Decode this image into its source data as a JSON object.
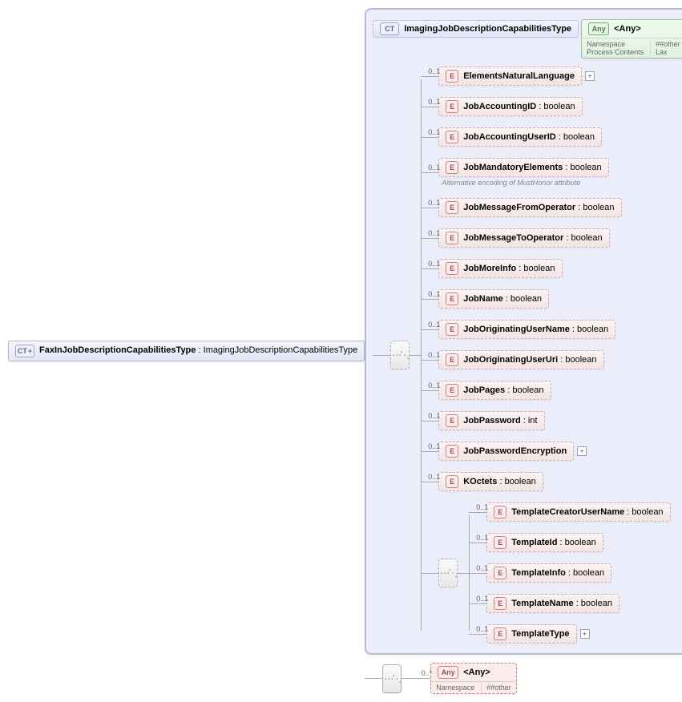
{
  "source": {
    "name": "FaxInJobDescriptionCapabilitiesType",
    "base": "ImagingJobDescriptionCapabilitiesType"
  },
  "panel": {
    "title": "ImagingJobDescriptionCapabilitiesType",
    "any": {
      "label": "<Any>",
      "namespace_label": "Namespace",
      "namespace": "##other",
      "process_label": "Process Contents",
      "process": "Lax"
    }
  },
  "children": [
    {
      "occ": "0..1",
      "name": "ElementsNaturalLanguage",
      "type": "",
      "expand": true
    },
    {
      "occ": "0..1",
      "name": "JobAccountingID",
      "type": "boolean"
    },
    {
      "occ": "0..1",
      "name": "JobAccountingUserID",
      "type": "boolean"
    },
    {
      "occ": "0..1",
      "name": "JobMandatoryElements",
      "type": "boolean",
      "note": "Alternative encoding of MustHonor attribute"
    },
    {
      "occ": "0..1",
      "name": "JobMessageFromOperator",
      "type": "boolean"
    },
    {
      "occ": "0..1",
      "name": "JobMessageToOperator",
      "type": "boolean"
    },
    {
      "occ": "0..1",
      "name": "JobMoreInfo",
      "type": "boolean"
    },
    {
      "occ": "0..1",
      "name": "JobName",
      "type": "boolean"
    },
    {
      "occ": "0..1",
      "name": "JobOriginatingUserName",
      "type": "boolean"
    },
    {
      "occ": "0..1",
      "name": "JobOriginatingUserUri",
      "type": "boolean"
    },
    {
      "occ": "0..1",
      "name": "JobPages",
      "type": "boolean"
    },
    {
      "occ": "0..1",
      "name": "JobPassword",
      "type": "int"
    },
    {
      "occ": "0..1",
      "name": "JobPasswordEncryption",
      "type": "",
      "expand": true
    },
    {
      "occ": "0..1",
      "name": "KOctets ",
      "type": "boolean"
    }
  ],
  "template_children": [
    {
      "occ": "0..1",
      "name": "TemplateCreatorUserName",
      "type": "boolean"
    },
    {
      "occ": "0..1",
      "name": "TemplateId",
      "type": "boolean"
    },
    {
      "occ": "0..1",
      "name": "TemplateInfo",
      "type": "boolean"
    },
    {
      "occ": "0..1",
      "name": "TemplateName",
      "type": "boolean"
    },
    {
      "occ": "0..1",
      "name": "TemplateType",
      "type": "",
      "expand": true
    }
  ],
  "lower_any": {
    "occ": "0..*",
    "label": "<Any>",
    "namespace_label": "Namespace",
    "namespace": "##other"
  }
}
